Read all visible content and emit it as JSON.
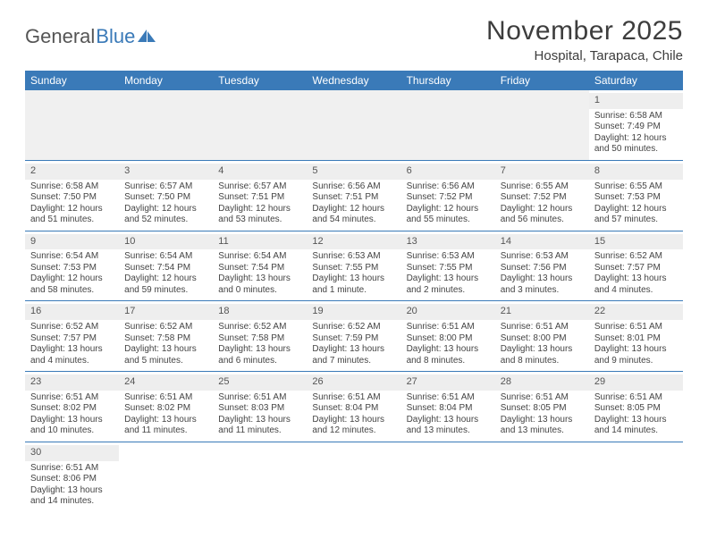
{
  "brand": {
    "part1": "General",
    "part2": "Blue"
  },
  "title": "November 2025",
  "location": "Hospital, Tarapaca, Chile",
  "colors": {
    "header_bg": "#3a7ab8",
    "header_text": "#ffffff",
    "daynum_bg": "#eeeeee",
    "text": "#444444",
    "rule": "#3a7ab8",
    "page_bg": "#ffffff"
  },
  "typography": {
    "title_fontsize_pt": 22,
    "location_fontsize_pt": 11,
    "dayhead_fontsize_pt": 9,
    "cell_fontsize_pt": 7.5
  },
  "labels": {
    "sunrise": "Sunrise:",
    "sunset": "Sunset:",
    "daylight": "Daylight:"
  },
  "day_headers": [
    "Sunday",
    "Monday",
    "Tuesday",
    "Wednesday",
    "Thursday",
    "Friday",
    "Saturday"
  ],
  "layout": {
    "columns": 7,
    "rows": 6,
    "leading_blanks": 6,
    "days_in_month": 30
  },
  "days": [
    {
      "n": 1,
      "sunrise": "6:58 AM",
      "sunset": "7:49 PM",
      "daylight": "12 hours and 50 minutes."
    },
    {
      "n": 2,
      "sunrise": "6:58 AM",
      "sunset": "7:50 PM",
      "daylight": "12 hours and 51 minutes."
    },
    {
      "n": 3,
      "sunrise": "6:57 AM",
      "sunset": "7:50 PM",
      "daylight": "12 hours and 52 minutes."
    },
    {
      "n": 4,
      "sunrise": "6:57 AM",
      "sunset": "7:51 PM",
      "daylight": "12 hours and 53 minutes."
    },
    {
      "n": 5,
      "sunrise": "6:56 AM",
      "sunset": "7:51 PM",
      "daylight": "12 hours and 54 minutes."
    },
    {
      "n": 6,
      "sunrise": "6:56 AM",
      "sunset": "7:52 PM",
      "daylight": "12 hours and 55 minutes."
    },
    {
      "n": 7,
      "sunrise": "6:55 AM",
      "sunset": "7:52 PM",
      "daylight": "12 hours and 56 minutes."
    },
    {
      "n": 8,
      "sunrise": "6:55 AM",
      "sunset": "7:53 PM",
      "daylight": "12 hours and 57 minutes."
    },
    {
      "n": 9,
      "sunrise": "6:54 AM",
      "sunset": "7:53 PM",
      "daylight": "12 hours and 58 minutes."
    },
    {
      "n": 10,
      "sunrise": "6:54 AM",
      "sunset": "7:54 PM",
      "daylight": "12 hours and 59 minutes."
    },
    {
      "n": 11,
      "sunrise": "6:54 AM",
      "sunset": "7:54 PM",
      "daylight": "13 hours and 0 minutes."
    },
    {
      "n": 12,
      "sunrise": "6:53 AM",
      "sunset": "7:55 PM",
      "daylight": "13 hours and 1 minute."
    },
    {
      "n": 13,
      "sunrise": "6:53 AM",
      "sunset": "7:55 PM",
      "daylight": "13 hours and 2 minutes."
    },
    {
      "n": 14,
      "sunrise": "6:53 AM",
      "sunset": "7:56 PM",
      "daylight": "13 hours and 3 minutes."
    },
    {
      "n": 15,
      "sunrise": "6:52 AM",
      "sunset": "7:57 PM",
      "daylight": "13 hours and 4 minutes."
    },
    {
      "n": 16,
      "sunrise": "6:52 AM",
      "sunset": "7:57 PM",
      "daylight": "13 hours and 4 minutes."
    },
    {
      "n": 17,
      "sunrise": "6:52 AM",
      "sunset": "7:58 PM",
      "daylight": "13 hours and 5 minutes."
    },
    {
      "n": 18,
      "sunrise": "6:52 AM",
      "sunset": "7:58 PM",
      "daylight": "13 hours and 6 minutes."
    },
    {
      "n": 19,
      "sunrise": "6:52 AM",
      "sunset": "7:59 PM",
      "daylight": "13 hours and 7 minutes."
    },
    {
      "n": 20,
      "sunrise": "6:51 AM",
      "sunset": "8:00 PM",
      "daylight": "13 hours and 8 minutes."
    },
    {
      "n": 21,
      "sunrise": "6:51 AM",
      "sunset": "8:00 PM",
      "daylight": "13 hours and 8 minutes."
    },
    {
      "n": 22,
      "sunrise": "6:51 AM",
      "sunset": "8:01 PM",
      "daylight": "13 hours and 9 minutes."
    },
    {
      "n": 23,
      "sunrise": "6:51 AM",
      "sunset": "8:02 PM",
      "daylight": "13 hours and 10 minutes."
    },
    {
      "n": 24,
      "sunrise": "6:51 AM",
      "sunset": "8:02 PM",
      "daylight": "13 hours and 11 minutes."
    },
    {
      "n": 25,
      "sunrise": "6:51 AM",
      "sunset": "8:03 PM",
      "daylight": "13 hours and 11 minutes."
    },
    {
      "n": 26,
      "sunrise": "6:51 AM",
      "sunset": "8:04 PM",
      "daylight": "13 hours and 12 minutes."
    },
    {
      "n": 27,
      "sunrise": "6:51 AM",
      "sunset": "8:04 PM",
      "daylight": "13 hours and 13 minutes."
    },
    {
      "n": 28,
      "sunrise": "6:51 AM",
      "sunset": "8:05 PM",
      "daylight": "13 hours and 13 minutes."
    },
    {
      "n": 29,
      "sunrise": "6:51 AM",
      "sunset": "8:05 PM",
      "daylight": "13 hours and 14 minutes."
    },
    {
      "n": 30,
      "sunrise": "6:51 AM",
      "sunset": "8:06 PM",
      "daylight": "13 hours and 14 minutes."
    }
  ]
}
